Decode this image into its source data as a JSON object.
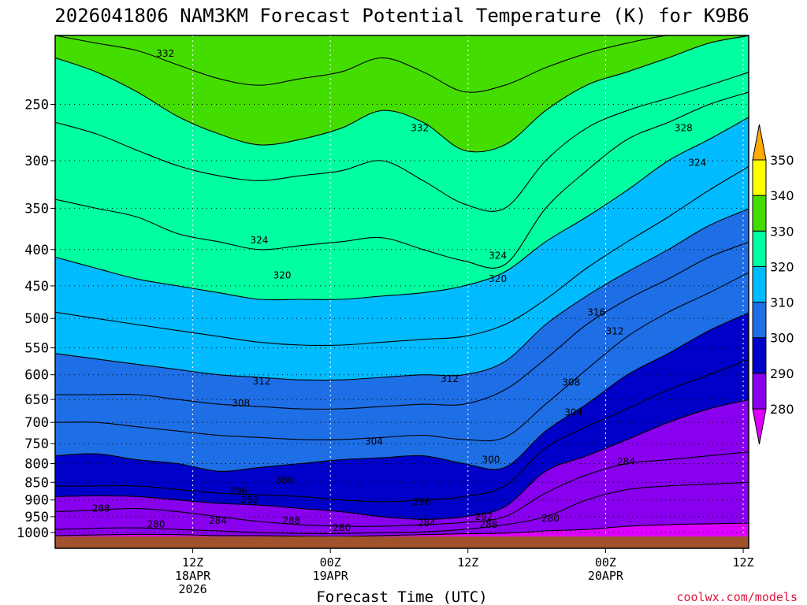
{
  "chart_data": {
    "type": "heatmap",
    "title": "2026041806 NAM3KM Forecast Potential Temperature (K) for K9B6",
    "xlabel": "Forecast Time (UTC)",
    "ylabel": "",
    "credit": "coolwx.com/models",
    "x_ticks": [
      {
        "hour": 6,
        "lines": [
          "12Z",
          "18APR",
          "2026"
        ]
      },
      {
        "hour": 12,
        "lines": [
          "00Z",
          "19APR"
        ]
      },
      {
        "hour": 18,
        "lines": [
          "12Z"
        ]
      },
      {
        "hour": 24,
        "lines": [
          "00Z",
          "20APR"
        ]
      },
      {
        "hour": 30,
        "lines": [
          "12Z"
        ]
      }
    ],
    "x_range": [
      0,
      30.3
    ],
    "y_range_hPa": [
      200,
      1030
    ],
    "y_ticks": [
      250,
      300,
      350,
      400,
      450,
      500,
      550,
      600,
      650,
      700,
      750,
      800,
      850,
      900,
      950,
      1000
    ],
    "legend": {
      "placement": "right",
      "labels": [
        "280",
        "290",
        "300",
        "310",
        "320",
        "330",
        "340",
        "350"
      ],
      "bands": [
        {
          "min": 270,
          "max": 280,
          "color": "#dd00ff"
        },
        {
          "min": 280,
          "max": 290,
          "color": "#8800ee"
        },
        {
          "min": 290,
          "max": 300,
          "color": "#0000c8"
        },
        {
          "min": 300,
          "max": 310,
          "color": "#1e6ee6"
        },
        {
          "min": 310,
          "max": 320,
          "color": "#00bbff"
        },
        {
          "min": 320,
          "max": 330,
          "color": "#00ffa0"
        },
        {
          "min": 330,
          "max": 340,
          "color": "#44dd00"
        },
        {
          "min": 340,
          "max": 350,
          "color": "#ffff00"
        },
        {
          "min": 350,
          "max": 360,
          "color": "#ffaa00"
        }
      ]
    },
    "ground_color": "#a0522d",
    "isentropes": [
      {
        "theta": 280,
        "pressures": [
          1010,
          1008,
          1006,
          1007,
          1010,
          1010,
          1012,
          1013,
          1010,
          1007,
          1004,
          1002,
          995,
          990,
          980,
          975,
          972,
          970
        ]
      },
      {
        "theta": 284,
        "pressures": [
          990,
          986,
          985,
          990,
          995,
          1000,
          1003,
          1003,
          1000,
          998,
          990,
          975,
          950,
          900,
          870,
          860,
          855,
          850
        ]
      },
      {
        "theta": 288,
        "pressures": [
          935,
          930,
          925,
          935,
          950,
          965,
          975,
          980,
          980,
          975,
          968,
          950,
          880,
          830,
          800,
          790,
          780,
          770
        ]
      },
      {
        "theta": 292,
        "pressures": [
          890,
          888,
          890,
          900,
          910,
          915,
          925,
          935,
          950,
          958,
          950,
          920,
          820,
          780,
          740,
          700,
          670,
          650
        ]
      },
      {
        "theta": 296,
        "pressures": [
          860,
          860,
          860,
          870,
          880,
          885,
          890,
          900,
          905,
          900,
          890,
          860,
          760,
          710,
          670,
          630,
          600,
          570
        ]
      },
      {
        "theta": 300,
        "pressures": [
          780,
          775,
          790,
          800,
          820,
          810,
          800,
          790,
          785,
          780,
          800,
          810,
          720,
          660,
          600,
          560,
          520,
          490
        ]
      },
      {
        "theta": 304,
        "pressures": [
          700,
          700,
          710,
          720,
          730,
          735,
          740,
          740,
          735,
          730,
          740,
          735,
          660,
          590,
          530,
          490,
          460,
          430
        ]
      },
      {
        "theta": 308,
        "pressures": [
          640,
          640,
          640,
          650,
          660,
          665,
          670,
          670,
          665,
          660,
          660,
          630,
          570,
          510,
          470,
          440,
          410,
          390
        ]
      },
      {
        "theta": 312,
        "pressures": [
          560,
          570,
          580,
          590,
          600,
          605,
          610,
          610,
          605,
          600,
          600,
          575,
          510,
          465,
          430,
          400,
          370,
          350
        ]
      },
      {
        "theta": 316,
        "pressures": [
          490,
          500,
          510,
          520,
          530,
          540,
          545,
          545,
          540,
          535,
          530,
          510,
          470,
          425,
          390,
          360,
          330,
          305
        ]
      },
      {
        "theta": 320,
        "pressures": [
          410,
          425,
          440,
          450,
          460,
          470,
          470,
          470,
          465,
          460,
          450,
          430,
          390,
          360,
          330,
          300,
          280,
          260
        ]
      },
      {
        "theta": 324,
        "pressures": [
          340,
          350,
          360,
          380,
          390,
          400,
          395,
          390,
          385,
          400,
          415,
          420,
          350,
          310,
          280,
          265,
          250,
          240
        ]
      },
      {
        "theta": 328,
        "pressures": [
          265,
          275,
          290,
          305,
          315,
          320,
          315,
          310,
          300,
          320,
          345,
          350,
          300,
          270,
          255,
          245,
          235,
          225
        ]
      },
      {
        "theta": 332,
        "pressures": [
          215,
          225,
          240,
          260,
          275,
          285,
          280,
          270,
          255,
          265,
          290,
          285,
          255,
          235,
          225,
          215,
          205,
          200
        ]
      },
      {
        "theta": 336,
        "pressures": [
          200,
          205,
          210,
          220,
          230,
          235,
          230,
          225,
          215,
          225,
          240,
          235,
          222,
          212,
          205,
          200,
          200,
          200
        ]
      }
    ],
    "contour_labels": [
      {
        "text": "332",
        "hour": 4.8,
        "hPa": 212
      },
      {
        "text": "332",
        "hour": 15.9,
        "hPa": 270
      },
      {
        "text": "328",
        "hour": 27.4,
        "hPa": 270
      },
      {
        "text": "324",
        "hour": 28.0,
        "hPa": 302
      },
      {
        "text": "324",
        "hour": 8.9,
        "hPa": 388
      },
      {
        "text": "324",
        "hour": 19.3,
        "hPa": 408
      },
      {
        "text": "320",
        "hour": 9.9,
        "hPa": 435
      },
      {
        "text": "320",
        "hour": 19.3,
        "hPa": 440
      },
      {
        "text": "316",
        "hour": 23.6,
        "hPa": 490
      },
      {
        "text": "312",
        "hour": 24.4,
        "hPa": 521
      },
      {
        "text": "312",
        "hour": 9.0,
        "hPa": 613
      },
      {
        "text": "312",
        "hour": 17.2,
        "hPa": 608
      },
      {
        "text": "308",
        "hour": 8.1,
        "hPa": 658
      },
      {
        "text": "308",
        "hour": 22.5,
        "hPa": 615
      },
      {
        "text": "304",
        "hour": 22.6,
        "hPa": 678
      },
      {
        "text": "304",
        "hour": 13.9,
        "hPa": 745
      },
      {
        "text": "300",
        "hour": 19.0,
        "hPa": 790
      },
      {
        "text": "300",
        "hour": 10.0,
        "hPa": 845
      },
      {
        "text": "296",
        "hour": 8.0,
        "hPa": 875
      },
      {
        "text": "292",
        "hour": 8.5,
        "hPa": 900
      },
      {
        "text": "296",
        "hour": 16.0,
        "hPa": 905
      },
      {
        "text": "292",
        "hour": 18.7,
        "hPa": 950
      },
      {
        "text": "288",
        "hour": 2.0,
        "hPa": 925
      },
      {
        "text": "284",
        "hour": 7.1,
        "hPa": 962
      },
      {
        "text": "288",
        "hour": 10.3,
        "hPa": 963
      },
      {
        "text": "280",
        "hour": 4.4,
        "hPa": 973
      },
      {
        "text": "280",
        "hour": 12.5,
        "hPa": 985
      },
      {
        "text": "284",
        "hour": 16.2,
        "hPa": 970
      },
      {
        "text": "288",
        "hour": 18.9,
        "hPa": 975
      },
      {
        "text": "280",
        "hour": 21.6,
        "hPa": 955
      },
      {
        "text": "284",
        "hour": 24.9,
        "hPa": 795
      }
    ]
  }
}
